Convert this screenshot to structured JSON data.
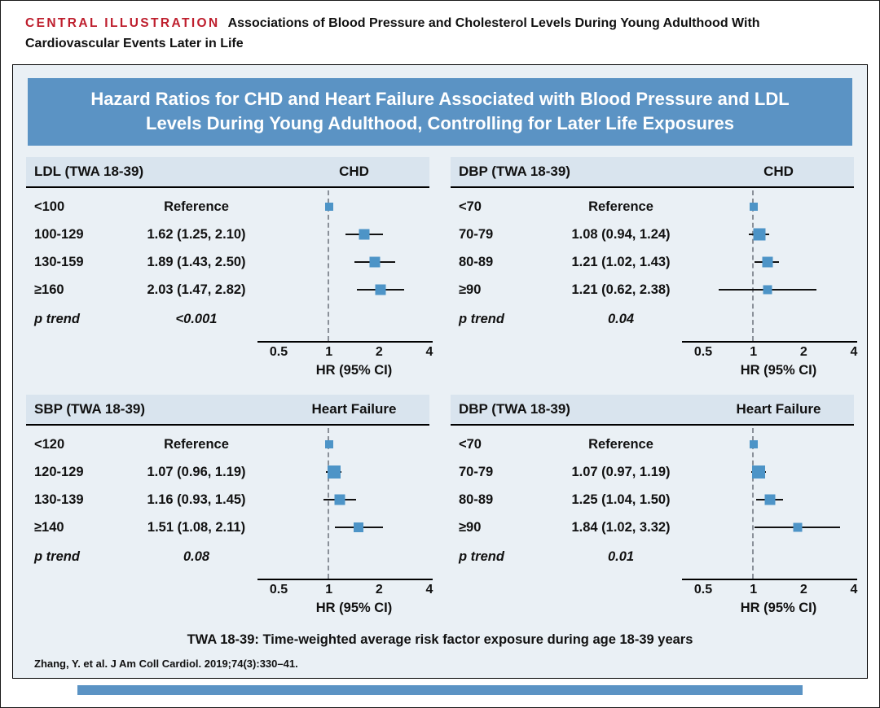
{
  "header": {
    "label": "CENTRAL ILLUSTRATION",
    "title": "Associations of Blood Pressure and Cholesterol Levels During Young Adulthood With Cardiovascular Events Later in Life"
  },
  "banner": {
    "title": "Hazard Ratios for CHD and Heart Failure Associated with Blood Pressure and LDL Levels During Young Adulthood, Controlling for Later Life Exposures"
  },
  "footnote": "TWA 18-39: Time-weighted average risk factor exposure during age 18-39 years",
  "citation": "Zhang, Y. et al. J Am Coll Cardiol. 2019;74(3):330–41.",
  "colors": {
    "accent_red": "#BE1E2D",
    "banner_blue": "#5B93C4",
    "panel_background": "#EAF0F5",
    "band_background": "#D9E4EE",
    "marker_blue": "#4D94C7",
    "axis_black": "#000000",
    "reference_dash_gray": "#8a9099"
  },
  "chart_data": [
    {
      "type": "forest",
      "exposure": "LDL  (TWA 18-39)",
      "outcome": "CHD",
      "x_scale": "log",
      "xlim": [
        0.5,
        4
      ],
      "x_ticks": [
        0.5,
        1,
        2,
        4
      ],
      "x_label": "HR (95% CI)",
      "p_trend_label": "p trend",
      "p_trend": "<0.001",
      "rows": [
        {
          "category": "<100",
          "display": "Reference",
          "hr": 1.0,
          "lo": 1.0,
          "hi": 1.0,
          "size": 10
        },
        {
          "category": "100-129",
          "display": "1.62 (1.25, 2.10)",
          "hr": 1.62,
          "lo": 1.25,
          "hi": 2.1,
          "size": 13
        },
        {
          "category": "130-159",
          "display": "1.89 (1.43, 2.50)",
          "hr": 1.89,
          "lo": 1.43,
          "hi": 2.5,
          "size": 13
        },
        {
          "category": "≥160",
          "display": "2.03 (1.47, 2.82)",
          "hr": 2.03,
          "lo": 1.47,
          "hi": 2.82,
          "size": 13
        }
      ]
    },
    {
      "type": "forest",
      "exposure": "DBP  (TWA 18-39)",
      "outcome": "CHD",
      "x_scale": "log",
      "xlim": [
        0.5,
        4
      ],
      "x_ticks": [
        0.5,
        1,
        2,
        4
      ],
      "x_label": "HR (95% CI)",
      "p_trend_label": "p trend",
      "p_trend": "0.04",
      "rows": [
        {
          "category": "<70",
          "display": "Reference",
          "hr": 1.0,
          "lo": 1.0,
          "hi": 1.0,
          "size": 10
        },
        {
          "category": "70-79",
          "display": "1.08 (0.94, 1.24)",
          "hr": 1.08,
          "lo": 0.94,
          "hi": 1.24,
          "size": 15
        },
        {
          "category": "80-89",
          "display": "1.21 (1.02, 1.43)",
          "hr": 1.21,
          "lo": 1.02,
          "hi": 1.43,
          "size": 13
        },
        {
          "category": "≥90",
          "display": "1.21 (0.62, 2.38)",
          "hr": 1.21,
          "lo": 0.62,
          "hi": 2.38,
          "size": 11
        }
      ]
    },
    {
      "type": "forest",
      "exposure": "SBP  (TWA 18-39)",
      "outcome": "Heart Failure",
      "x_scale": "log",
      "xlim": [
        0.5,
        4
      ],
      "x_ticks": [
        0.5,
        1,
        2,
        4
      ],
      "x_label": "HR (95% CI)",
      "p_trend_label": "p trend",
      "p_trend": "0.08",
      "rows": [
        {
          "category": "<120",
          "display": "Reference",
          "hr": 1.0,
          "lo": 1.0,
          "hi": 1.0,
          "size": 10
        },
        {
          "category": "120-129",
          "display": "1.07 (0.96, 1.19)",
          "hr": 1.07,
          "lo": 0.96,
          "hi": 1.19,
          "size": 16
        },
        {
          "category": "130-139",
          "display": "1.16 (0.93, 1.45)",
          "hr": 1.16,
          "lo": 0.93,
          "hi": 1.45,
          "size": 13
        },
        {
          "category": "≥140",
          "display": "1.51 (1.08, 2.11)",
          "hr": 1.51,
          "lo": 1.08,
          "hi": 2.11,
          "size": 12
        }
      ]
    },
    {
      "type": "forest",
      "exposure": "DBP  (TWA 18-39)",
      "outcome": "Heart Failure",
      "x_scale": "log",
      "xlim": [
        0.5,
        4
      ],
      "x_ticks": [
        0.5,
        1,
        2,
        4
      ],
      "x_label": "HR (95% CI)",
      "p_trend_label": "p trend",
      "p_trend": "0.01",
      "rows": [
        {
          "category": "<70",
          "display": "Reference",
          "hr": 1.0,
          "lo": 1.0,
          "hi": 1.0,
          "size": 10
        },
        {
          "category": "70-79",
          "display": "1.07 (0.97, 1.19)",
          "hr": 1.07,
          "lo": 0.97,
          "hi": 1.19,
          "size": 16
        },
        {
          "category": "80-89",
          "display": "1.25 (1.04, 1.50)",
          "hr": 1.25,
          "lo": 1.04,
          "hi": 1.5,
          "size": 13
        },
        {
          "category": "≥90",
          "display": "1.84 (1.02, 3.32)",
          "hr": 1.84,
          "lo": 1.02,
          "hi": 3.32,
          "size": 11
        }
      ]
    }
  ]
}
